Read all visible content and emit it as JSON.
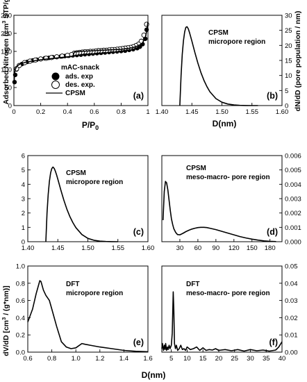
{
  "chart_data": [
    {
      "id": "a",
      "type": "scatter",
      "panel_label": "(a)",
      "xlabel": "P/P",
      "xlabel_sub": "0",
      "ylabel": "Adsorbed Nitrogen (cm",
      "ylabel_sup": "3",
      "ylabel_tail": " STP/g)",
      "xlim": [
        0,
        1.0
      ],
      "ylim": [
        0,
        250
      ],
      "xticks": [
        0.0,
        0.2,
        0.4,
        0.6,
        0.8,
        1.0
      ],
      "yticks": [
        0,
        50,
        100,
        150,
        200,
        250
      ],
      "legend": {
        "title": "mAC-snack",
        "entries": [
          "ads. exp",
          "des. exp.",
          "CPSM"
        ],
        "position": "bottom-center"
      },
      "series": [
        {
          "name": "ads. exp",
          "marker": "filled-circle",
          "x": [
            0.005,
            0.01,
            0.02,
            0.04,
            0.06,
            0.08,
            0.1,
            0.12,
            0.14,
            0.17,
            0.2,
            0.23,
            0.26,
            0.29,
            0.32,
            0.35,
            0.38,
            0.41,
            0.44,
            0.47,
            0.5,
            0.53,
            0.56,
            0.59,
            0.62,
            0.65,
            0.68,
            0.71,
            0.74,
            0.77,
            0.8,
            0.83,
            0.86,
            0.89,
            0.92,
            0.94,
            0.96,
            0.98,
            0.99
          ],
          "y": [
            65,
            85,
            100,
            110,
            115,
            118,
            121,
            123,
            125,
            127,
            129,
            131,
            132,
            134,
            135,
            136,
            137,
            138,
            139,
            140,
            141,
            142,
            143,
            144,
            145,
            146,
            147,
            148,
            149,
            150,
            151,
            152,
            154,
            156,
            159,
            163,
            170,
            185,
            210
          ]
        },
        {
          "name": "des. exp.",
          "marker": "open-circle",
          "x": [
            0.99,
            0.97,
            0.95,
            0.93,
            0.91,
            0.89,
            0.87,
            0.85,
            0.83,
            0.81,
            0.79,
            0.77,
            0.75,
            0.73,
            0.71,
            0.69,
            0.67,
            0.65,
            0.63,
            0.61,
            0.59,
            0.57,
            0.55,
            0.53,
            0.51,
            0.49,
            0.47,
            0.45,
            0.43,
            0.4,
            0.36,
            0.32,
            0.28,
            0.24,
            0.2,
            0.16,
            0.12,
            0.08,
            0.04,
            0.02
          ],
          "y": [
            225,
            195,
            178,
            170,
            166,
            163,
            161,
            160,
            159,
            158,
            157,
            156,
            155,
            155,
            154,
            153,
            153,
            152,
            152,
            151,
            150,
            150,
            149,
            149,
            148,
            147,
            146,
            145,
            141,
            139,
            137,
            135,
            133,
            131,
            129,
            126,
            123,
            119,
            111,
            102
          ]
        },
        {
          "name": "CPSM",
          "marker": "line",
          "x": [
            0.001,
            0.005,
            0.01,
            0.02,
            0.04,
            0.07,
            0.1,
            0.15,
            0.2,
            0.25,
            0.3,
            0.35,
            0.4,
            0.44,
            0.45,
            0.5,
            0.55,
            0.6,
            0.65,
            0.7,
            0.75,
            0.8,
            0.85,
            0.88,
            0.91,
            0.94,
            0.96,
            0.98,
            0.99,
            1.0
          ],
          "y": [
            60,
            90,
            100,
            108,
            114,
            118,
            121,
            124,
            127,
            129,
            131,
            133,
            135,
            137,
            148,
            150,
            151,
            152,
            153,
            154,
            155,
            156,
            158,
            160,
            163,
            168,
            174,
            188,
            205,
            232
          ]
        }
      ]
    },
    {
      "id": "b",
      "type": "line",
      "panel_label": "(b)",
      "title_lines": [
        "CPSM",
        "micropore region"
      ],
      "xlabel": "D(nm)",
      "ylabel": "dN/dD (pore population / nm)",
      "xlim": [
        1.4,
        1.6
      ],
      "ylim": [
        0,
        30
      ],
      "xticks": [
        1.4,
        1.45,
        1.5,
        1.55,
        1.6
      ],
      "xtick_labels": [
        "1.40",
        "1.45",
        "1.50",
        "1.55",
        "1.60"
      ],
      "yticks": [
        0,
        5,
        10,
        15,
        20,
        25,
        30
      ],
      "series": [
        {
          "x": [
            1.43,
            1.432,
            1.434,
            1.436,
            1.438,
            1.44,
            1.442,
            1.444,
            1.446,
            1.448,
            1.45,
            1.455,
            1.46,
            1.465,
            1.47,
            1.475,
            1.48,
            1.49,
            1.5,
            1.51,
            1.52,
            1.53,
            1.54,
            1.55,
            1.56
          ],
          "y": [
            0,
            10,
            17,
            21.5,
            24.5,
            26,
            26.2,
            25.5,
            24.3,
            22.9,
            21.4,
            17.6,
            14.1,
            11.0,
            8.4,
            6.3,
            4.6,
            2.3,
            1.1,
            0.5,
            0.2,
            0.08,
            0.03,
            0.01,
            0
          ]
        }
      ]
    },
    {
      "id": "c",
      "type": "line",
      "panel_label": "(c)",
      "title_lines": [
        "CPSM",
        "micropore region"
      ],
      "xlim": [
        1.4,
        1.6
      ],
      "ylim": [
        0,
        6
      ],
      "xticks": [
        1.4,
        1.45,
        1.5,
        1.55,
        1.6
      ],
      "xtick_labels": [
        "1.40",
        "1.45",
        "1.50",
        "1.55",
        "1.60"
      ],
      "yticks": [
        0,
        1,
        2,
        3,
        4,
        5,
        6
      ],
      "series": [
        {
          "x": [
            1.43,
            1.432,
            1.434,
            1.436,
            1.438,
            1.44,
            1.442,
            1.444,
            1.446,
            1.448,
            1.45,
            1.455,
            1.46,
            1.465,
            1.47,
            1.475,
            1.48,
            1.49,
            1.5,
            1.51,
            1.52,
            1.53,
            1.54,
            1.55
          ],
          "y": [
            0,
            2.0,
            3.3,
            4.2,
            4.8,
            5.1,
            5.2,
            5.1,
            4.9,
            4.65,
            4.35,
            3.6,
            2.9,
            2.28,
            1.76,
            1.33,
            0.98,
            0.5,
            0.23,
            0.1,
            0.04,
            0.015,
            0.005,
            0
          ]
        }
      ]
    },
    {
      "id": "d",
      "type": "line",
      "panel_label": "(d)",
      "title_lines": [
        "CPSM",
        "meso-macro- pore region"
      ],
      "xlim": [
        0,
        200
      ],
      "ylim": [
        0,
        0.006
      ],
      "xticks": [
        0,
        30,
        60,
        90,
        120,
        150,
        180
      ],
      "xtick_labels": [
        "",
        "30",
        "60",
        "90",
        "120",
        "150",
        "180"
      ],
      "yticks": [
        0.0,
        0.001,
        0.002,
        0.003,
        0.004,
        0.005,
        0.006
      ],
      "ytick_labels": [
        "0.000",
        "0.001",
        "0.002",
        "0.003",
        "0.004",
        "0.005",
        "0.006"
      ],
      "series": [
        {
          "x": [
            2,
            4,
            6,
            8,
            10,
            12,
            14,
            16,
            18,
            20,
            23,
            26,
            30,
            35,
            40,
            45,
            50,
            55,
            60,
            65,
            70,
            75,
            80,
            90,
            100,
            110,
            120,
            130,
            140,
            150,
            160,
            170,
            180,
            190
          ],
          "y": [
            0.0015,
            0.0035,
            0.0042,
            0.0041,
            0.0036,
            0.0029,
            0.0022,
            0.0016,
            0.0012,
            0.0009,
            0.00065,
            0.0005,
            0.00048,
            0.00058,
            0.0007,
            0.0008,
            0.00088,
            0.00094,
            0.00098,
            0.001,
            0.001,
            0.00098,
            0.00094,
            0.00084,
            0.00072,
            0.0006,
            0.00048,
            0.00036,
            0.00026,
            0.00018,
            0.00011,
            6e-05,
            3e-05,
            1e-05
          ]
        }
      ]
    },
    {
      "id": "e",
      "type": "line",
      "panel_label": "(e)",
      "title_lines": [
        "DFT",
        "micropore region"
      ],
      "xlabel": "D(nm)",
      "xlim": [
        0.6,
        1.6
      ],
      "ylim": [
        0,
        1.0
      ],
      "xticks": [
        0.6,
        0.8,
        1.0,
        1.2,
        1.4,
        1.6
      ],
      "xtick_labels": [
        "0.6",
        "0.8",
        "1.0",
        "1.2",
        "1.4",
        "1.6"
      ],
      "yticks": [
        0.0,
        0.2,
        0.4,
        0.6,
        0.8,
        1.0
      ],
      "ytick_labels": [
        "0.0",
        "0.2",
        "0.4",
        "0.6",
        "0.8",
        "1.0"
      ],
      "series": [
        {
          "x": [
            0.6,
            0.64,
            0.67,
            0.7,
            0.71,
            0.73,
            0.75,
            0.78,
            0.8,
            0.84,
            0.88,
            0.92,
            0.96,
            1.0,
            1.02,
            1.05,
            1.08,
            1.12,
            1.2,
            1.3,
            1.4,
            1.5,
            1.6
          ],
          "y": [
            0.35,
            0.5,
            0.68,
            0.83,
            0.82,
            0.72,
            0.66,
            0.6,
            0.5,
            0.3,
            0.12,
            0.06,
            0.04,
            0.05,
            0.07,
            0.1,
            0.09,
            0.08,
            0.06,
            0.04,
            0.02,
            0.01,
            0.005
          ]
        }
      ]
    },
    {
      "id": "f",
      "type": "line",
      "panel_label": "(f)",
      "title_lines": [
        "DFT",
        "meso-macro- pore region"
      ],
      "xlabel": "D(nm)",
      "xlim": [
        2,
        40
      ],
      "ylim": [
        0,
        0.05
      ],
      "xticks": [
        5,
        10,
        15,
        20,
        25,
        30,
        35,
        40
      ],
      "yticks": [
        0.0,
        0.01,
        0.02,
        0.03,
        0.04,
        0.05
      ],
      "ytick_labels": [
        "0.00",
        "0.01",
        "0.02",
        "0.03",
        "0.04",
        "0.05"
      ],
      "series": [
        {
          "x": [
            2.0,
            2.2,
            2.5,
            2.8,
            3.0,
            3.2,
            3.5,
            3.8,
            4.0,
            4.3,
            4.6,
            5.0,
            5.3,
            5.6,
            5.8,
            6.0,
            6.3,
            6.6,
            7.0,
            7.5,
            8.0,
            8.5,
            9.0,
            9.5,
            10,
            11,
            12,
            13,
            14,
            15,
            16,
            17,
            18,
            19,
            20,
            22,
            24,
            26,
            28,
            30,
            32,
            34,
            36,
            38,
            39,
            40
          ],
          "y": [
            0.002,
            0.005,
            0.001,
            0.004,
            0.0015,
            0.005,
            0.001,
            0.003,
            0.0015,
            0.004,
            0.002,
            0.004,
            0.011,
            0.035,
            0.024,
            0.005,
            0.002,
            0.004,
            0.001,
            0.002,
            0.004,
            0.0015,
            0.002,
            0.001,
            0.003,
            0.0015,
            0.002,
            0.003,
            0.001,
            0.0025,
            0.001,
            0.0015,
            0.0012,
            0.002,
            0.001,
            0.0015,
            0.0008,
            0.0015,
            0.0006,
            0.0015,
            0.0008,
            0.0012,
            0.0006,
            0.0012,
            0.003,
            0.006
          ]
        }
      ]
    }
  ],
  "shared_labels": {
    "ylabel_lower_pre": "dV/dD [cm",
    "ylabel_lower_sup": "3",
    "ylabel_lower_post": " / (g*nm)]"
  }
}
